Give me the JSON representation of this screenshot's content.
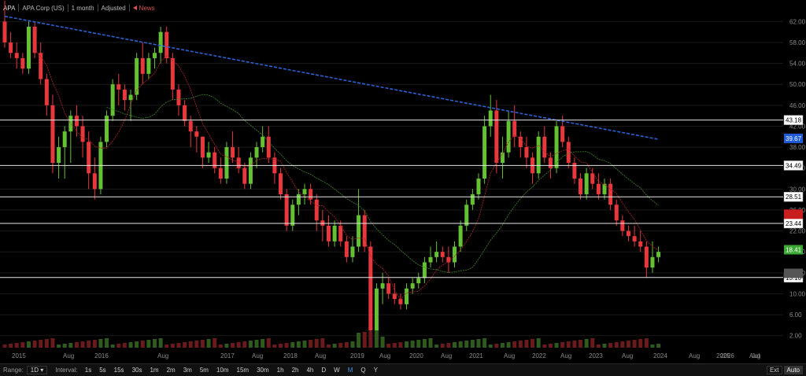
{
  "header": {
    "symbol": "APA",
    "name": "APA Corp (US)",
    "period": "1 month",
    "adjust": "Adjusted",
    "news": "News"
  },
  "chart_data": {
    "type": "candlestick",
    "interval": "1M",
    "x_tick_labels": [
      "2015",
      "Aug",
      "2016",
      "Aug",
      "2017",
      "Aug",
      "2018",
      "Aug",
      "2019",
      "Aug",
      "2020",
      "Aug",
      "2021",
      "Aug",
      "2022",
      "Aug",
      "2023",
      "Aug",
      "2024",
      "Aug",
      "2025",
      "Aug",
      "2026",
      "Jul"
    ],
    "y_tick_labels": [
      "62.00",
      "58.00",
      "54.00",
      "50.00",
      "46.00",
      "42.00",
      "38.00",
      "34.00",
      "30.00",
      "26.00",
      "22.00",
      "18.00",
      "14.00",
      "10.00",
      "6.00",
      "2.00"
    ],
    "ylim": [
      0,
      64
    ],
    "price_lines": [
      {
        "value": 43.18,
        "label": "43.18"
      },
      {
        "value": 34.49,
        "label": "34.49"
      },
      {
        "value": 28.51,
        "label": "28.51"
      },
      {
        "value": 23.44,
        "label": "23.44"
      },
      {
        "value": 13.1,
        "label": "13.10"
      }
    ],
    "price_tags": [
      {
        "value": 39.67,
        "label": "39.67",
        "color": "#1f5bd8"
      },
      {
        "value": 18.41,
        "label": "18.41",
        "color": "#3aa832"
      },
      {
        "value": 25.2,
        "label": "",
        "color": "#c81e1e"
      },
      {
        "value": 13.9,
        "label": "",
        "color": "#555555"
      }
    ],
    "colors": {
      "up": "#63c132",
      "down": "#e8383d",
      "ma_long": "#2a63d6",
      "ma_mid": "#3e8a23",
      "ma_short": "#b0242b"
    },
    "candles": [
      [
        62,
        66,
        57,
        58
      ],
      [
        58,
        60,
        55,
        56
      ],
      [
        56,
        58,
        53,
        55
      ],
      [
        55,
        56,
        52,
        53
      ],
      [
        53,
        62,
        52,
        61
      ],
      [
        61,
        62,
        55,
        56
      ],
      [
        56,
        58,
        50,
        51
      ],
      [
        51,
        52,
        44,
        46
      ],
      [
        46,
        48,
        33,
        35
      ],
      [
        35,
        40,
        32,
        38
      ],
      [
        38,
        42,
        32,
        41
      ],
      [
        41,
        45,
        35,
        44
      ],
      [
        44,
        46,
        40,
        42
      ],
      [
        42,
        44,
        36,
        39
      ],
      [
        39,
        41,
        30,
        33
      ],
      [
        33,
        36,
        28,
        30
      ],
      [
        30,
        40,
        29,
        39
      ],
      [
        39,
        45,
        38,
        44
      ],
      [
        44,
        51,
        43,
        50
      ],
      [
        50,
        52,
        46,
        49
      ],
      [
        49,
        50,
        45,
        47
      ],
      [
        47,
        49,
        43,
        48
      ],
      [
        48,
        56,
        47,
        55
      ],
      [
        55,
        58,
        50,
        52
      ],
      [
        52,
        56,
        51,
        55
      ],
      [
        55,
        57,
        53,
        56
      ],
      [
        56,
        61,
        54,
        60
      ],
      [
        60,
        61,
        54,
        55
      ],
      [
        55,
        56,
        47,
        49
      ],
      [
        49,
        50,
        44,
        46
      ],
      [
        46,
        47,
        42,
        43
      ],
      [
        43,
        44,
        38,
        41
      ],
      [
        41,
        42,
        37,
        40
      ],
      [
        40,
        40,
        34,
        36
      ],
      [
        36,
        39,
        35,
        37
      ],
      [
        37,
        38,
        33,
        34
      ],
      [
        34,
        36,
        31,
        32
      ],
      [
        32,
        39,
        31,
        38
      ],
      [
        38,
        41,
        35,
        36
      ],
      [
        36,
        38,
        33,
        34
      ],
      [
        34,
        35,
        30,
        31
      ],
      [
        31,
        37,
        30,
        36
      ],
      [
        36,
        39,
        34,
        38
      ],
      [
        38,
        42,
        37,
        40
      ],
      [
        40,
        42,
        35,
        36
      ],
      [
        36,
        37,
        31,
        33
      ],
      [
        33,
        34,
        28,
        29
      ],
      [
        29,
        30,
        22,
        23
      ],
      [
        23,
        28,
        22,
        27
      ],
      [
        27,
        30,
        25,
        29
      ],
      [
        29,
        31,
        27,
        30
      ],
      [
        30,
        31,
        27,
        28
      ],
      [
        28,
        29,
        22,
        24
      ],
      [
        24,
        26,
        20,
        23
      ],
      [
        23,
        25,
        19,
        20
      ],
      [
        20,
        24,
        19,
        23
      ],
      [
        23,
        24,
        19,
        20
      ],
      [
        20,
        21,
        16,
        17
      ],
      [
        17,
        21,
        16,
        19
      ],
      [
        19,
        30,
        18,
        25
      ],
      [
        25,
        26,
        18,
        19
      ],
      [
        19,
        20,
        2,
        3
      ],
      [
        3,
        12,
        2,
        11
      ],
      [
        11,
        14,
        8,
        12
      ],
      [
        12,
        13,
        9,
        10
      ],
      [
        10,
        12,
        8,
        9
      ],
      [
        9,
        10,
        7,
        8
      ],
      [
        8,
        12,
        7,
        11
      ],
      [
        11,
        13,
        10,
        12
      ],
      [
        12,
        14,
        11,
        13
      ],
      [
        13,
        17,
        12,
        16
      ],
      [
        16,
        19,
        15,
        17
      ],
      [
        17,
        20,
        16,
        18
      ],
      [
        18,
        19,
        16,
        17
      ],
      [
        17,
        19,
        14,
        16
      ],
      [
        16,
        20,
        15,
        19
      ],
      [
        19,
        24,
        18,
        23
      ],
      [
        23,
        28,
        22,
        27
      ],
      [
        27,
        30,
        26,
        29
      ],
      [
        29,
        33,
        28,
        32
      ],
      [
        32,
        44,
        31,
        42
      ],
      [
        42,
        48,
        40,
        45
      ],
      [
        45,
        47,
        33,
        35
      ],
      [
        35,
        40,
        32,
        37
      ],
      [
        37,
        45,
        36,
        43
      ],
      [
        43,
        46,
        38,
        40
      ],
      [
        40,
        41,
        36,
        38
      ],
      [
        38,
        40,
        34,
        36
      ],
      [
        36,
        37,
        31,
        33
      ],
      [
        33,
        41,
        32,
        40
      ],
      [
        40,
        42,
        35,
        36
      ],
      [
        36,
        37,
        32,
        34
      ],
      [
        34,
        43,
        33,
        42
      ],
      [
        42,
        44,
        38,
        39
      ],
      [
        39,
        40,
        34,
        35
      ],
      [
        35,
        36,
        31,
        32
      ],
      [
        32,
        33,
        28,
        29
      ],
      [
        29,
        34,
        28,
        33
      ],
      [
        33,
        34,
        30,
        31
      ],
      [
        31,
        33,
        28,
        29
      ],
      [
        29,
        32,
        28,
        31
      ],
      [
        31,
        32,
        26,
        27
      ],
      [
        27,
        28,
        23,
        24
      ],
      [
        24,
        25,
        21,
        22
      ],
      [
        22,
        23,
        20,
        21
      ],
      [
        21,
        23,
        19,
        20
      ],
      [
        20,
        22,
        18,
        19
      ],
      [
        19,
        20,
        13,
        15
      ],
      [
        15,
        20,
        14,
        17
      ],
      [
        17,
        19,
        16,
        18
      ]
    ]
  },
  "bottom_bar": {
    "range_label": "Range:",
    "range_value": "1D",
    "interval_label": "Interval:",
    "intervals": [
      "1s",
      "5s",
      "15s",
      "30s",
      "1m",
      "2m",
      "3m",
      "5m",
      "10m",
      "15m",
      "30m",
      "1h",
      "2h",
      "4h",
      "D",
      "W",
      "M",
      "Q",
      "Y"
    ],
    "active_interval": "M",
    "ext_label": "Ext",
    "auto_label": "Auto"
  }
}
